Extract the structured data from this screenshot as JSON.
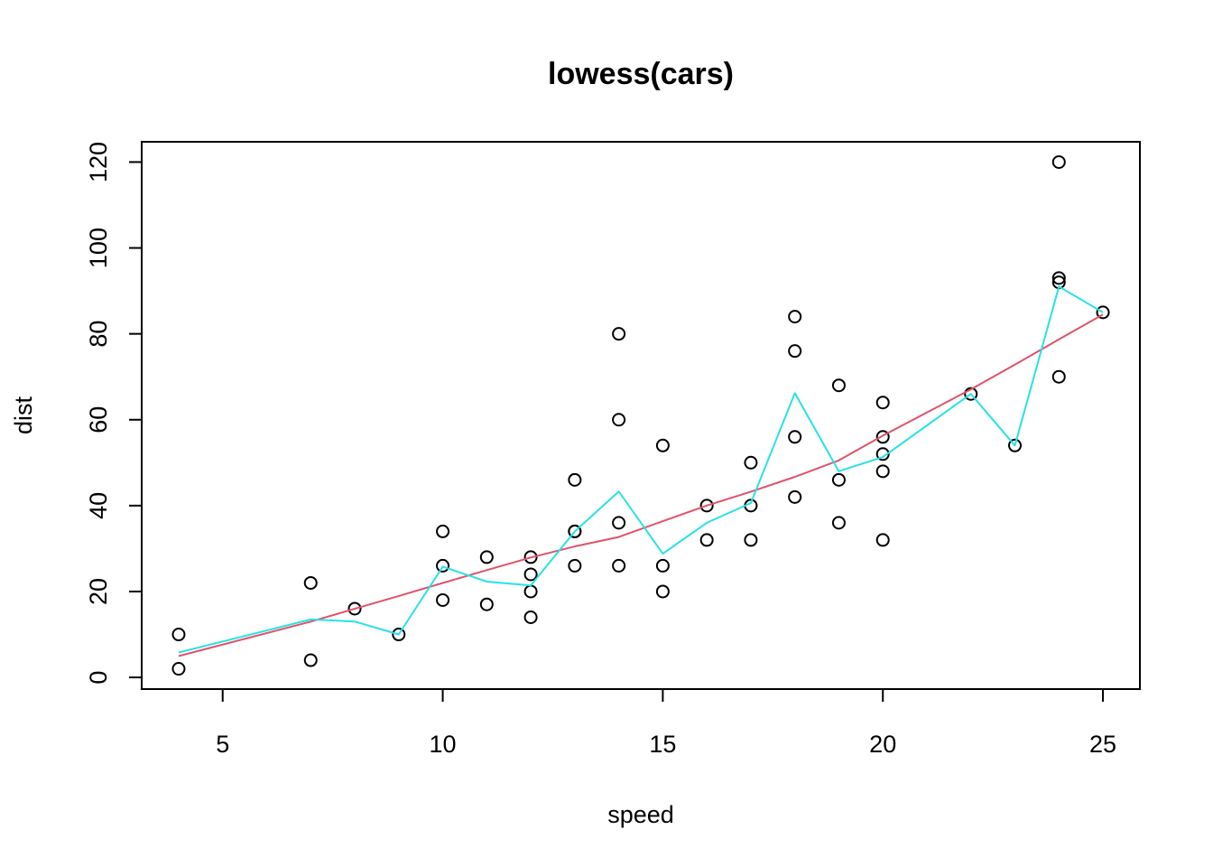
{
  "chart_data": {
    "type": "scatter",
    "title": "lowess(cars)",
    "xlabel": "speed",
    "ylabel": "dist",
    "xlim": [
      3.16,
      25.84
    ],
    "ylim": [
      -2.72,
      124.72
    ],
    "xticks": [
      5,
      10,
      15,
      20,
      25
    ],
    "yticks": [
      0,
      20,
      40,
      60,
      80,
      100,
      120
    ],
    "grid": false,
    "points": {
      "x": [
        4,
        4,
        7,
        7,
        8,
        9,
        10,
        10,
        10,
        11,
        11,
        12,
        12,
        12,
        12,
        13,
        13,
        13,
        13,
        14,
        14,
        14,
        14,
        15,
        15,
        15,
        16,
        16,
        17,
        17,
        17,
        18,
        18,
        18,
        18,
        19,
        19,
        19,
        20,
        20,
        20,
        20,
        20,
        22,
        23,
        24,
        24,
        24,
        24,
        25
      ],
      "y": [
        2,
        10,
        4,
        22,
        16,
        10,
        18,
        26,
        34,
        17,
        28,
        14,
        20,
        24,
        28,
        26,
        34,
        34,
        46,
        26,
        36,
        60,
        80,
        20,
        26,
        54,
        32,
        40,
        32,
        40,
        50,
        42,
        56,
        76,
        84,
        36,
        46,
        68,
        32,
        48,
        52,
        56,
        64,
        66,
        54,
        70,
        92,
        93,
        120,
        85
      ]
    },
    "series": [
      {
        "name": "",
        "color": "#DF536B",
        "x": [
          4,
          7,
          8,
          9,
          10,
          11,
          12,
          13,
          14,
          15,
          16,
          17,
          18,
          19,
          20,
          22,
          23,
          24,
          25
        ],
        "y": [
          4.97,
          12.98,
          15.98,
          18.96,
          21.99,
          24.97,
          27.93,
          30.51,
          32.69,
          36.38,
          40.01,
          43.25,
          46.71,
          50.52,
          56.29,
          67.08,
          72.81,
          78.7,
          84.52
        ]
      },
      {
        "name": "",
        "color": "#28E2E5",
        "x": [
          4,
          7,
          8,
          9,
          10,
          11,
          12,
          13,
          14,
          15,
          16,
          17,
          18,
          19,
          20,
          22,
          23,
          24,
          25
        ],
        "y": [
          5.8,
          13.5,
          13.0,
          10.0,
          25.8,
          22.3,
          21.4,
          34.0,
          43.3,
          28.8,
          36.0,
          40.6,
          66.2,
          48.0,
          51.3,
          66.0,
          54.0,
          91.0,
          85.0
        ]
      }
    ]
  }
}
